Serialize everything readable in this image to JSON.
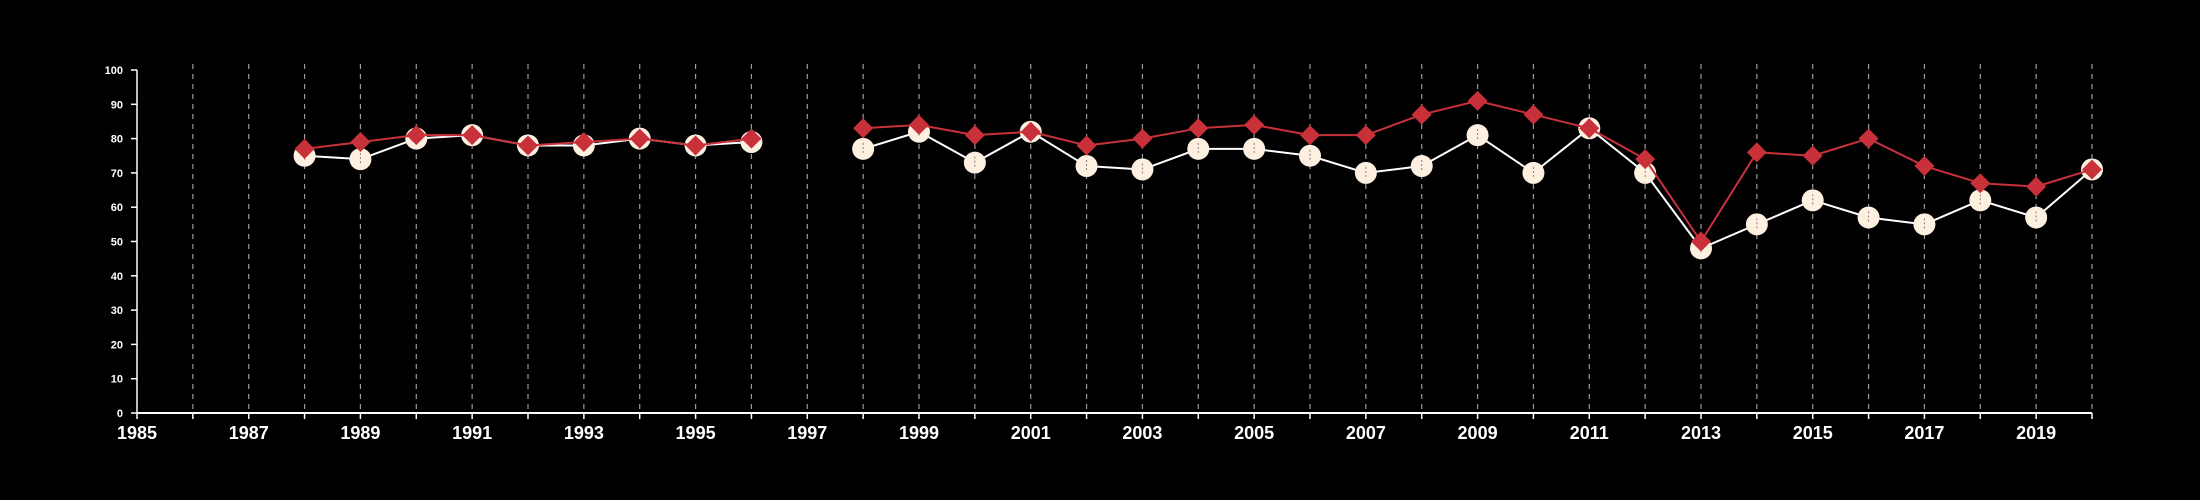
{
  "chart_data": {
    "type": "line",
    "title": "",
    "xlabel": "",
    "ylabel": "",
    "xlim": [
      1985,
      2020
    ],
    "ylim": [
      0,
      100
    ],
    "x_ticks": [
      "1985",
      "1987",
      "1989",
      "1991",
      "1993",
      "1995",
      "1997",
      "1999",
      "2001",
      "2003",
      "2005",
      "2007",
      "2009",
      "2011",
      "2013",
      "2015",
      "2017",
      "2019"
    ],
    "y_ticks": [
      "0",
      "10",
      "20",
      "30",
      "40",
      "50",
      "60",
      "70",
      "80",
      "90",
      "100"
    ],
    "grid": "vertical dashed lines at every year",
    "background": "#000000",
    "series": [
      {
        "marker": "circle",
        "color": "#fdf0e0",
        "line_color": "#ffffff",
        "points": [
          [
            1988,
            75
          ],
          [
            1989,
            74
          ],
          [
            1990,
            80
          ],
          [
            1991,
            81
          ],
          [
            1992,
            78
          ],
          [
            1993,
            78
          ],
          [
            1994,
            80
          ],
          [
            1995,
            78
          ],
          [
            1996,
            79
          ],
          [
            1998,
            77
          ],
          [
            1999,
            82
          ],
          [
            2000,
            73
          ],
          [
            2001,
            82
          ],
          [
            2002,
            72
          ],
          [
            2003,
            71
          ],
          [
            2004,
            77
          ],
          [
            2005,
            77
          ],
          [
            2006,
            75
          ],
          [
            2007,
            70
          ],
          [
            2008,
            72
          ],
          [
            2009,
            81
          ],
          [
            2010,
            70
          ],
          [
            2011,
            83
          ],
          [
            2012,
            70
          ],
          [
            2013,
            48
          ],
          [
            2014,
            55
          ],
          [
            2015,
            62
          ],
          [
            2016,
            57
          ],
          [
            2017,
            55
          ],
          [
            2018,
            62
          ],
          [
            2019,
            57
          ],
          [
            2020,
            71
          ]
        ]
      },
      {
        "marker": "diamond",
        "color": "#c8313a",
        "line_color": "#c8313a",
        "points": [
          [
            1988,
            77
          ],
          [
            1989,
            79
          ],
          [
            1990,
            81
          ],
          [
            1991,
            81
          ],
          [
            1992,
            78
          ],
          [
            1993,
            79
          ],
          [
            1994,
            80
          ],
          [
            1995,
            78
          ],
          [
            1996,
            80
          ],
          [
            1998,
            83
          ],
          [
            1999,
            84
          ],
          [
            2000,
            81
          ],
          [
            2001,
            82
          ],
          [
            2002,
            78
          ],
          [
            2003,
            80
          ],
          [
            2004,
            83
          ],
          [
            2005,
            84
          ],
          [
            2006,
            81
          ],
          [
            2007,
            81
          ],
          [
            2008,
            87
          ],
          [
            2009,
            91
          ],
          [
            2010,
            87
          ],
          [
            2011,
            83
          ],
          [
            2012,
            74
          ],
          [
            2013,
            50
          ],
          [
            2014,
            76
          ],
          [
            2015,
            75
          ],
          [
            2016,
            80
          ],
          [
            2017,
            72
          ],
          [
            2018,
            67
          ],
          [
            2019,
            66
          ],
          [
            2020,
            71
          ]
        ]
      }
    ]
  }
}
